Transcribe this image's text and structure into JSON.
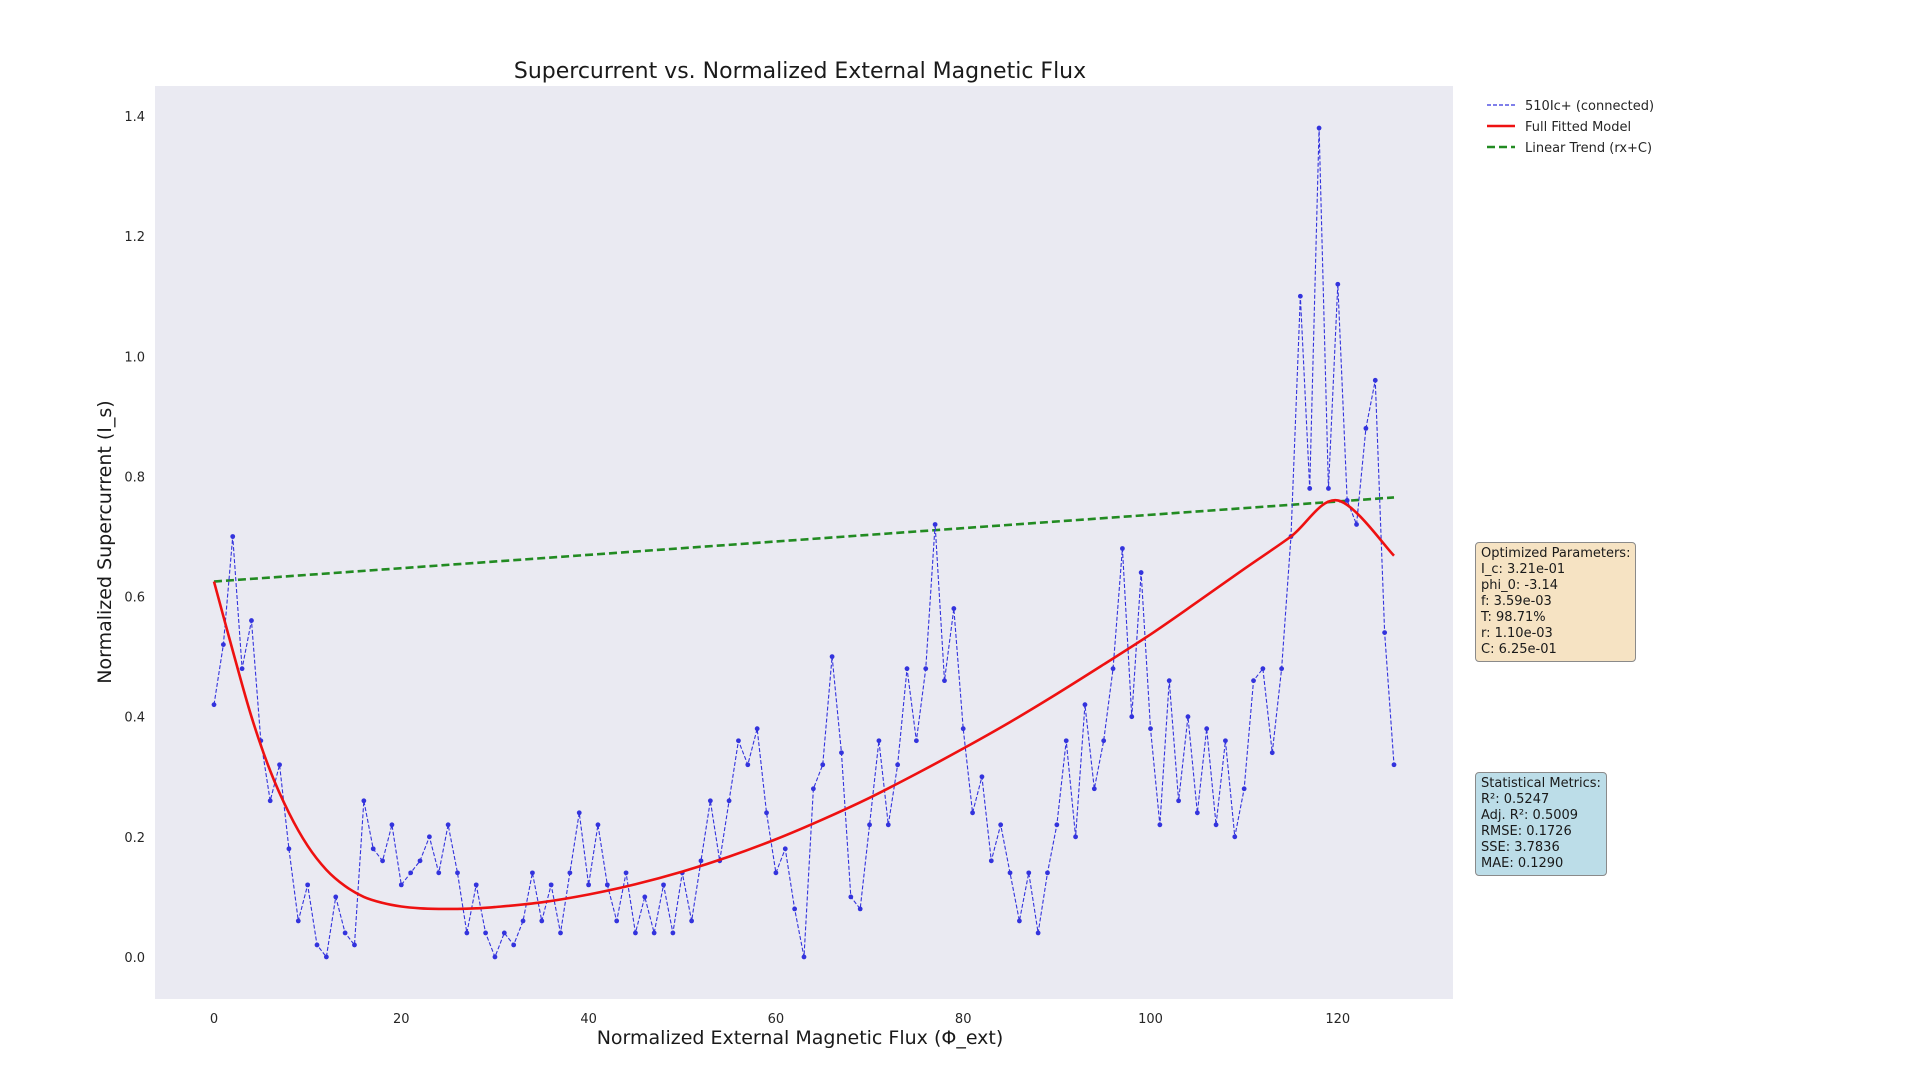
{
  "chart_data": {
    "type": "line",
    "title": "Supercurrent vs. Normalized External Magnetic Flux",
    "xlabel": "Normalized External Magnetic Flux (Φ_ext)",
    "ylabel": "Normalized Supercurrent (I_s)",
    "xlim": [
      -6.3,
      132.3
    ],
    "ylim": [
      -0.07,
      1.45
    ],
    "xticks": [
      0,
      20,
      40,
      60,
      80,
      100,
      120
    ],
    "yticks": [
      0.0,
      0.2,
      0.4,
      0.6,
      0.8,
      1.0,
      1.2,
      1.4
    ],
    "xtick_labels": [
      "0",
      "20",
      "40",
      "60",
      "80",
      "100",
      "120"
    ],
    "ytick_labels": [
      "0.0",
      "0.2",
      "0.4",
      "0.6",
      "0.8",
      "1.0",
      "1.2",
      "1.4"
    ],
    "grid": false,
    "legend_position": "outside-top-right",
    "series": [
      {
        "name": "510Ic+ (connected)",
        "style": "dashed-with-markers",
        "color": "#3333dd",
        "y": [
          0.42,
          0.52,
          0.7,
          0.48,
          0.56,
          0.36,
          0.26,
          0.32,
          0.18,
          0.06,
          0.12,
          0.02,
          0.0,
          0.1,
          0.04,
          0.02,
          0.26,
          0.18,
          0.16,
          0.22,
          0.12,
          0.14,
          0.16,
          0.2,
          0.14,
          0.22,
          0.14,
          0.04,
          0.12,
          0.04,
          0.0,
          0.04,
          0.02,
          0.06,
          0.14,
          0.06,
          0.12,
          0.04,
          0.14,
          0.24,
          0.12,
          0.22,
          0.12,
          0.06,
          0.14,
          0.04,
          0.1,
          0.04,
          0.12,
          0.04,
          0.14,
          0.06,
          0.16,
          0.26,
          0.16,
          0.26,
          0.36,
          0.32,
          0.38,
          0.24,
          0.14,
          0.18,
          0.08,
          0.0,
          0.28,
          0.32,
          0.5,
          0.34,
          0.1,
          0.08,
          0.22,
          0.36,
          0.22,
          0.32,
          0.48,
          0.36,
          0.48,
          0.72,
          0.46,
          0.58,
          0.38,
          0.24,
          0.3,
          0.16,
          0.22,
          0.14,
          0.06,
          0.14,
          0.04,
          0.14,
          0.22,
          0.36,
          0.2,
          0.42,
          0.28,
          0.36,
          0.48,
          0.68,
          0.4,
          0.64,
          0.38,
          0.22,
          0.46,
          0.26,
          0.4,
          0.24,
          0.38,
          0.22,
          0.36,
          0.2,
          0.28,
          0.46,
          0.48,
          0.34,
          0.48,
          0.7,
          1.1,
          0.78,
          1.38,
          0.78,
          1.12,
          0.76,
          0.72,
          0.88,
          0.96,
          0.54,
          0.32
        ]
      },
      {
        "name": "Full Fitted Model",
        "style": "solid",
        "color": "#ee1111",
        "x": [
          0,
          2,
          4,
          6,
          8,
          10,
          12,
          14,
          16,
          18,
          20,
          22,
          24,
          26,
          28,
          30,
          35,
          40,
          45,
          50,
          55,
          60,
          65,
          70,
          75,
          80,
          85,
          90,
          95,
          100,
          105,
          110,
          115,
          120,
          126
        ],
        "y": [
          0.625,
          0.51,
          0.4,
          0.31,
          0.24,
          0.185,
          0.145,
          0.118,
          0.1,
          0.09,
          0.084,
          0.081,
          0.08,
          0.08,
          0.081,
          0.083,
          0.091,
          0.104,
          0.121,
          0.142,
          0.167,
          0.196,
          0.229,
          0.265,
          0.305,
          0.347,
          0.391,
          0.438,
          0.487,
          0.537,
          0.591,
          0.646,
          0.7,
          0.76,
          0.668
        ]
      },
      {
        "name": "Linear Trend (rx+C)",
        "style": "dashed",
        "color": "#228b22",
        "x": [
          0,
          126
        ],
        "y": [
          0.625,
          0.765
        ]
      }
    ],
    "annotations": [
      {
        "id": "params",
        "lines": [
          "Optimized Parameters:",
          "I_c: 3.21e-01",
          "phi_0: -3.14",
          "f: 3.59e-03",
          "T: 98.71%",
          "r: 1.10e-03",
          "C: 6.25e-01"
        ]
      },
      {
        "id": "stats",
        "lines": [
          "Statistical Metrics:",
          "R²: 0.5247",
          "Adj. R²: 0.5009",
          "RMSE: 0.1726",
          "SSE: 3.7836",
          "MAE: 0.1290"
        ]
      }
    ]
  },
  "colors": {
    "plot_background": "#eaeaf2",
    "data_series": "#3333dd",
    "fit_model": "#ee1111",
    "linear_trend": "#228b22",
    "params_box": "#f6e3c3",
    "stats_box": "#bcdde8"
  }
}
